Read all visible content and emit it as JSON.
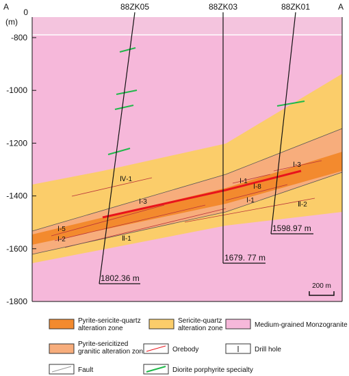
{
  "section": {
    "left_end": "A",
    "right_end": "A"
  },
  "axis": {
    "unit": "(m)",
    "top_label": "0",
    "yticks": [
      -800,
      -1000,
      -1200,
      -1400,
      -1600,
      -1800
    ]
  },
  "drill_holes": [
    {
      "name": "88ZK05",
      "depth": "1802.36 m"
    },
    {
      "name": "88ZK03",
      "depth": "1679. 77 m"
    },
    {
      "name": "88ZK01",
      "depth": "1598.97 m"
    }
  ],
  "orebody_labels": [
    "Ⅳ-1",
    "Ⅰ-3",
    "Ⅰ-5",
    "Ⅰ-2",
    "Ⅱ-1",
    "Ⅰ-1",
    "Ⅰ-8",
    "Ⅰ-1",
    "Ⅱ-2",
    "Ⅰ-3"
  ],
  "scale_bar": "200 m",
  "legend": [
    "Pyrite-sericite-quartz alteration zone",
    "Sericite-quartz alteration zone",
    "Medium-grained Monzogranite",
    "Pyrite-sericitized granitic alteration zone",
    "Orebody",
    "Drill hole",
    "Fault",
    "Diorite porphyrite specialty"
  ]
}
